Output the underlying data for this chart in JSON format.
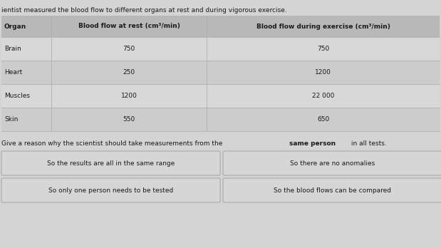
{
  "title_text": "ientist measured the blood flow to different organs at rest and during vigorous exercise.",
  "col_headers": [
    "Organ",
    "Blood flow at rest (cm³/min)",
    "Blood flow during exercise (cm³/min)"
  ],
  "rows": [
    [
      "Brain",
      "750",
      "750"
    ],
    [
      "Heart",
      "250",
      "1200"
    ],
    [
      "Muscles",
      "1200",
      "22 000"
    ],
    [
      "Skin",
      "550",
      "650"
    ]
  ],
  "question_normal1": "Give a reason why the scientist should take measurements from the ",
  "question_bold": "same person",
  "question_normal2": " in all tests.",
  "options": [
    [
      "So the results are all in the same range",
      "So there are no anomalies"
    ],
    [
      "So only one person needs to be tested",
      "So the blood flows can be compared"
    ]
  ],
  "bg_color": "#d4d4d4",
  "table_bg": "#c8c8c8",
  "table_header_bg": "#b8b8b8",
  "table_row_light": "#d8d8d8",
  "table_row_dark": "#cccccc",
  "divider_color": "#aaaaaa",
  "button_bg": "#d6d6d6",
  "button_border": "#aaaaaa",
  "text_color": "#1a1a1a",
  "title_fontsize": 6.5,
  "header_fontsize": 6.5,
  "data_fontsize": 6.5,
  "question_fontsize": 6.5,
  "button_fontsize": 6.5
}
